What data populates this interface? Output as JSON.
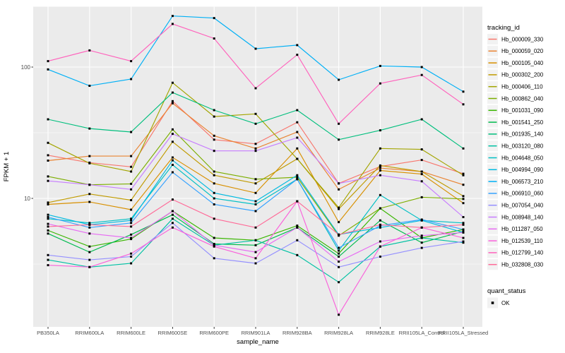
{
  "figure": {
    "y_axis_title": "FPKM + 1",
    "x_axis_title": "sample_name",
    "background": "#FFFFFF",
    "panel_background": "#EBEBEB",
    "gridline_color": "#FFFFFF",
    "tick_color": "#333333",
    "tick_label_color": "#4D4D4D",
    "marker_color": "#000000"
  },
  "legend": {
    "tracking_title": "tracking_id",
    "quant_title": "quant_status",
    "quant_items": [
      {
        "label": "OK"
      }
    ],
    "key_background": "#F2F2F2"
  },
  "chart_data": {
    "type": "line",
    "title": "",
    "xlabel": "sample_name",
    "ylabel": "FPKM + 1",
    "y_scale": "log10",
    "ylim": [
      1,
      300
    ],
    "y_major_ticks": [
      100,
      10
    ],
    "y_minor_gridlines": [
      31.62,
      3.162
    ],
    "grid": true,
    "legend_position": "right",
    "point_shape": "filled-square",
    "quant_status": "OK",
    "categories": [
      "PB350LA",
      "RRIM600LA",
      "RRIM600LE",
      "RRIM600SE",
      "RRIM600PE",
      "RRIM901LA",
      "RRIM928BA",
      "RRIM928LA",
      "RRIM928LE",
      "RRII105LA_Control",
      "RRII105LA_Stressed"
    ],
    "series": [
      {
        "name": "Hb_000009_330",
        "color": "#F8766D",
        "values": [
          21.3,
          18.7,
          17.4,
          55,
          28,
          26,
          38,
          13,
          17.5,
          19.6,
          15.4
        ]
      },
      {
        "name": "Hb_000059_020",
        "color": "#EA8331",
        "values": [
          19.4,
          21,
          21,
          53,
          30,
          24,
          32,
          11.7,
          17,
          16,
          12.7
        ]
      },
      {
        "name": "Hb_000105_040",
        "color": "#D89000",
        "values": [
          9.0,
          9.4,
          8.2,
          20.5,
          13,
          11,
          24,
          6.6,
          16.3,
          15.3,
          9.2
        ]
      },
      {
        "name": "Hb_000302_200",
        "color": "#C09B00",
        "values": [
          9.3,
          10.8,
          9.7,
          27,
          15,
          13,
          20,
          8.3,
          17.8,
          16,
          10.4
        ]
      },
      {
        "name": "Hb_000406_110",
        "color": "#A3A500",
        "values": [
          26.5,
          18.5,
          16,
          76,
          42,
          44,
          20,
          8.5,
          24,
          23.6,
          15
        ]
      },
      {
        "name": "Hb_000862_040",
        "color": "#7CAE00",
        "values": [
          14.7,
          12.7,
          12.9,
          33.5,
          16,
          14,
          14.5,
          5.2,
          8.4,
          10.2,
          9.9
        ]
      },
      {
        "name": "Hb_001031_090",
        "color": "#39B600",
        "values": [
          5.7,
          4.3,
          4.9,
          8.0,
          5.0,
          4.8,
          6.2,
          3.8,
          8.4,
          5.0,
          5.8
        ]
      },
      {
        "name": "Hb_001541_250",
        "color": "#00BB4E",
        "values": [
          5.4,
          3.9,
          5.3,
          7.5,
          4.5,
          4.4,
          6.0,
          3.6,
          6.8,
          4.6,
          5.6
        ]
      },
      {
        "name": "Hb_001935_140",
        "color": "#00BF7D",
        "values": [
          40,
          34,
          32,
          64,
          47,
          37,
          47,
          28,
          33,
          40,
          24
        ]
      },
      {
        "name": "Hb_003120_080",
        "color": "#00C1A3",
        "values": [
          3.4,
          3.0,
          3.2,
          7.0,
          4.4,
          4.8,
          3.7,
          2.3,
          4.3,
          5.0,
          4.6
        ]
      },
      {
        "name": "Hb_004648_050",
        "color": "#00BFC4",
        "values": [
          7.0,
          6.5,
          7.0,
          18,
          10,
          9.0,
          14,
          4.0,
          10.6,
          6.8,
          6.5
        ]
      },
      {
        "name": "Hb_004994_090",
        "color": "#00BAE0",
        "values": [
          7.5,
          6.3,
          6.8,
          19.5,
          11,
          9.5,
          15,
          5.3,
          6.0,
          6.8,
          5.5
        ]
      },
      {
        "name": "Hb_006573_210",
        "color": "#00B0F6",
        "values": [
          96,
          72,
          81,
          245,
          236,
          138,
          147,
          80,
          102,
          100,
          65
        ]
      },
      {
        "name": "Hb_006910_060",
        "color": "#35A2FF",
        "values": [
          7.2,
          6.0,
          6.5,
          15.8,
          9.0,
          8.0,
          14,
          4.2,
          6.2,
          6.9,
          5.8
        ]
      },
      {
        "name": "Hb_007054_040",
        "color": "#9590FF",
        "values": [
          3.7,
          3.4,
          3.6,
          6.5,
          3.5,
          3.2,
          4.8,
          3.0,
          3.6,
          4.2,
          4.7
        ]
      },
      {
        "name": "Hb_008948_140",
        "color": "#C77CFF",
        "values": [
          13.6,
          12.7,
          11.7,
          31,
          23,
          23,
          29,
          13,
          15,
          13.5,
          7.2
        ]
      },
      {
        "name": "Hb_011287_050",
        "color": "#E76BF3",
        "values": [
          6.4,
          5.4,
          5.0,
          8.0,
          4.4,
          3.9,
          6.0,
          3.3,
          4.7,
          5.2,
          5.5
        ]
      },
      {
        "name": "Hb_012539_110",
        "color": "#FA62DB",
        "values": [
          3.1,
          3.0,
          3.8,
          6.0,
          4.3,
          3.5,
          9.5,
          1.3,
          4.3,
          6.0,
          5.0
        ]
      },
      {
        "name": "Hb_012799_140",
        "color": "#FF62BC",
        "values": [
          111,
          134,
          111,
          213,
          165,
          69,
          124,
          37,
          75,
          87,
          52
        ]
      },
      {
        "name": "Hb_032808_030",
        "color": "#FF6A98",
        "values": [
          6.1,
          6.3,
          6.1,
          9.8,
          7.0,
          6.0,
          9.5,
          5.3,
          6.3,
          6.0,
          6.3
        ]
      }
    ]
  }
}
